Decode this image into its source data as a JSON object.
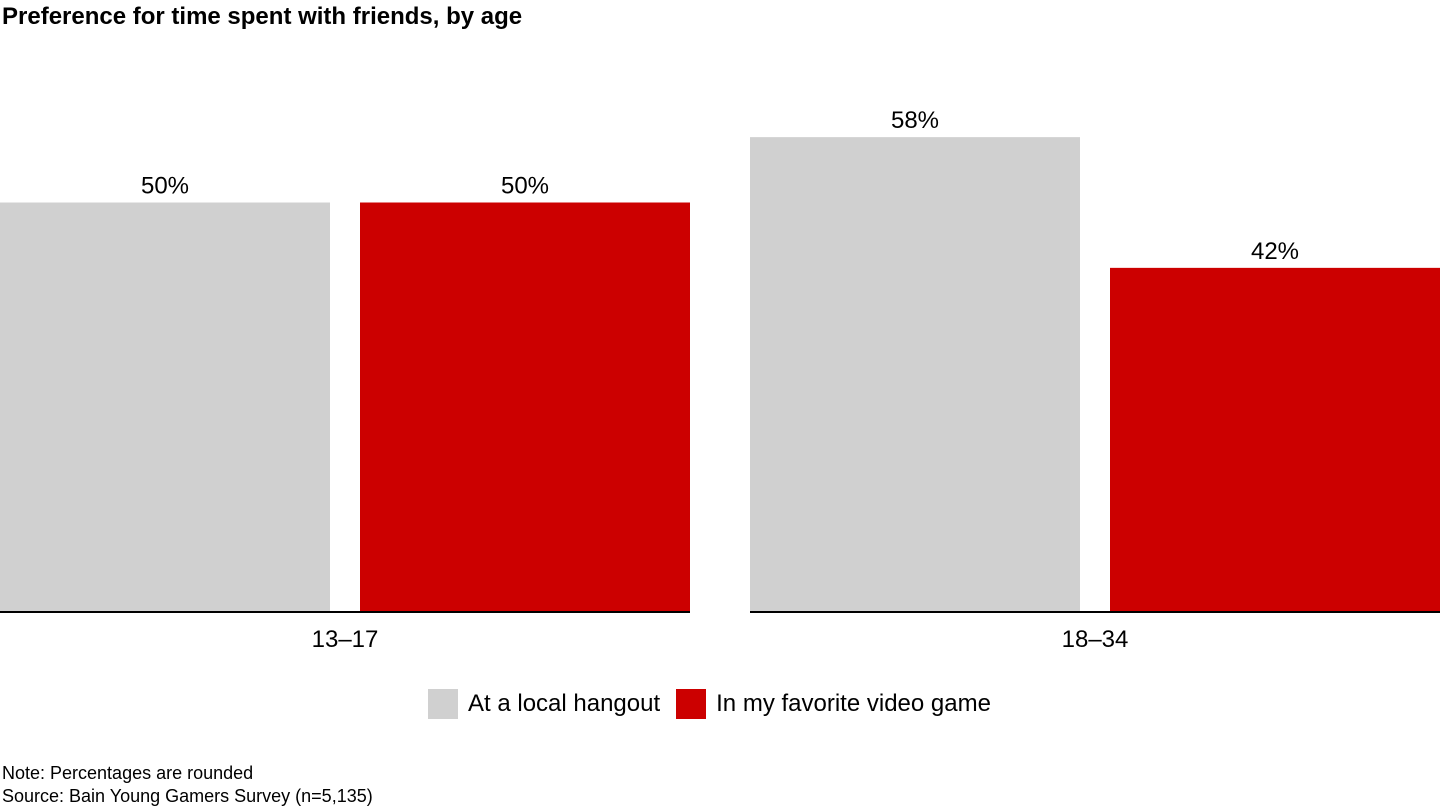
{
  "title": "Preference for time spent with friends, by age",
  "chart_data": {
    "type": "bar",
    "categories": [
      "13–17",
      "18–34"
    ],
    "series": [
      {
        "name": "At a local hangout",
        "values": [
          50,
          58
        ],
        "labels": [
          "50%",
          "58%"
        ],
        "color": "#d0d0d0"
      },
      {
        "name": "In my favorite video game",
        "values": [
          50,
          42
        ],
        "labels": [
          "50%",
          "42%"
        ],
        "color": "#cc0000"
      }
    ],
    "ylim": [
      0,
      70
    ],
    "grid": false,
    "legend": "bottom",
    "axis_color": "#000000"
  },
  "legend": {
    "items": [
      {
        "label": "At a local hangout",
        "color": "#d0d0d0"
      },
      {
        "label": "In my favorite video game",
        "color": "#cc0000"
      }
    ]
  },
  "footnotes": {
    "note": "Note: Percentages are rounded",
    "source": "Source: Bain Young Gamers Survey (n=5,135)"
  }
}
